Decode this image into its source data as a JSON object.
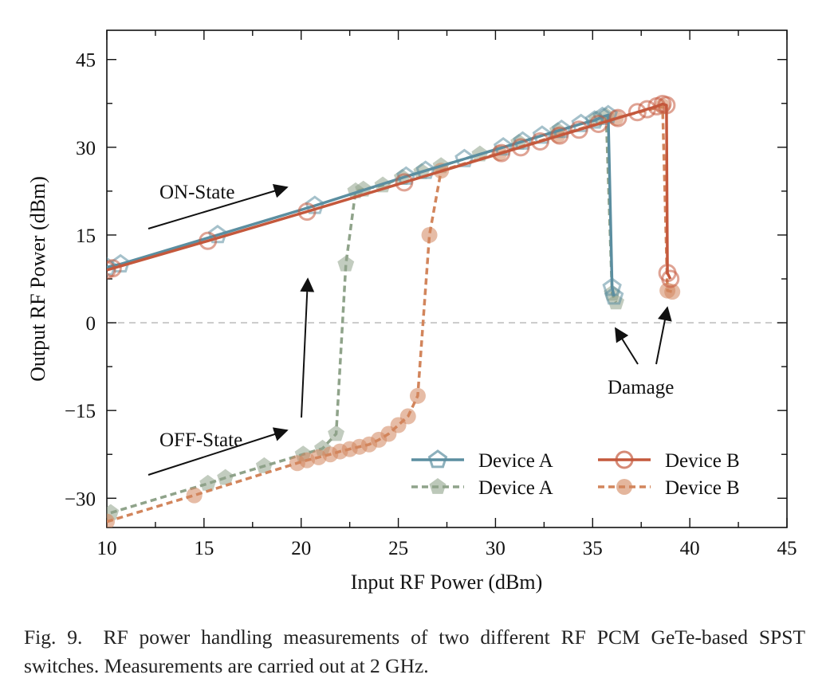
{
  "chart_data": {
    "type": "line",
    "title": "",
    "xlabel": "Input RF Power (dBm)",
    "ylabel": "Output RF Power (dBm)",
    "xlim": [
      10,
      45
    ],
    "ylim": [
      -35,
      50
    ],
    "xticks": [
      10,
      15,
      20,
      25,
      30,
      35,
      40,
      45
    ],
    "yticks": [
      -30,
      -15,
      0,
      15,
      30,
      45
    ],
    "grid": false,
    "reference_line": {
      "y": 0,
      "style": "dashed"
    },
    "legend_position": "bottom-right",
    "colors": {
      "device_a_on": "#5b8ea0",
      "device_a_off": "#8fa38a",
      "device_b_on": "#c4583c",
      "device_b_off": "#d2855c"
    },
    "series": [
      {
        "name": "Device A",
        "state": "ON",
        "style": "solid",
        "marker": "pentagon-open",
        "x": [
          10,
          10.7,
          15.7,
          20.7,
          25.4,
          26.4,
          28.4,
          30.4,
          31.4,
          32.4,
          33.4,
          34.4,
          35.1,
          35.5,
          35.8,
          36.0,
          36.1
        ],
        "y": [
          9.5,
          10,
          15,
          20,
          25,
          26,
          28,
          30,
          31,
          32,
          33,
          34,
          34.6,
          35.2,
          35.5,
          6,
          4.5
        ]
      },
      {
        "name": "Device A",
        "state": "OFF",
        "style": "dashed",
        "marker": "pentagon-filled",
        "x": [
          10.2,
          15.2,
          16.1,
          18.1,
          20.1,
          21.1,
          21.8,
          22.3,
          22.8,
          23.2,
          24.2,
          25.2,
          26.2,
          27.2,
          29.2,
          31.2,
          33.2,
          35.2,
          35.7,
          36.0,
          36.2
        ],
        "y": [
          -32.5,
          -27.5,
          -26.5,
          -24.5,
          -22.5,
          -21.5,
          -19,
          10,
          22.5,
          22.8,
          23.5,
          24.8,
          25.8,
          26.8,
          28.8,
          30.8,
          32.8,
          34.8,
          35.3,
          5,
          3.5
        ]
      },
      {
        "name": "Device B",
        "state": "ON",
        "style": "solid",
        "marker": "circle-open",
        "x": [
          10,
          10.3,
          15.2,
          20.3,
          25.3,
          30.3,
          31.3,
          32.3,
          33.3,
          34.3,
          35.3,
          36.3,
          37.3,
          37.8,
          38.3,
          38.6,
          38.8,
          38.85,
          39.0
        ],
        "y": [
          9,
          9.3,
          14,
          19,
          24,
          29,
          30,
          31,
          32,
          33,
          34,
          35,
          36,
          36.5,
          37,
          37.4,
          37.2,
          8.5,
          7.5
        ]
      },
      {
        "name": "Device B",
        "state": "OFF",
        "style": "dashed",
        "marker": "circle-filled",
        "x": [
          10,
          14.5,
          19.8,
          20.3,
          20.9,
          21.5,
          22.0,
          22.5,
          23.0,
          23.5,
          24.0,
          24.5,
          25.0,
          25.5,
          26.0,
          26.6,
          27.2,
          30.2,
          33.2,
          36.2,
          38.6,
          38.85,
          39.1
        ],
        "y": [
          -34,
          -29.5,
          -24,
          -23.5,
          -23,
          -22.5,
          -22,
          -21.6,
          -21.2,
          -20.8,
          -20,
          -19,
          -17.5,
          -16,
          -12.5,
          15,
          26,
          29,
          32,
          35,
          37,
          5.5,
          5.3
        ]
      }
    ],
    "annotations": {
      "on_state": "ON-State",
      "off_state": "OFF-State",
      "damage": "Damage"
    }
  },
  "caption": {
    "figure_number": "Fig. 9.",
    "text": "RF power handling measurements of two different RF PCM GeTe-based SPST switches. Measurements are carried out at 2 GHz."
  }
}
